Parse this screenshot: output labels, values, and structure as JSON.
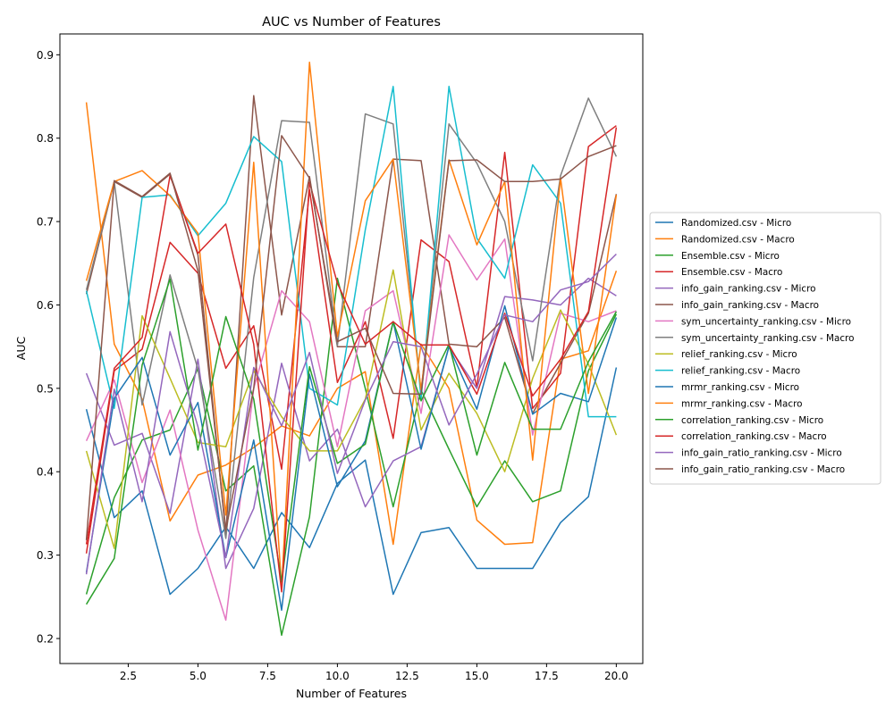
{
  "chart_data": {
    "type": "line",
    "title": "AUC vs Number of Features",
    "xlabel": "Number of Features",
    "ylabel": "AUC",
    "xlim": [
      0.05,
      20.95
    ],
    "ylim": [
      0.17,
      0.925
    ],
    "xticks": [
      2.5,
      5.0,
      7.5,
      10.0,
      12.5,
      15.0,
      17.5,
      20.0
    ],
    "xtick_labels": [
      "2.5",
      "5.0",
      "7.5",
      "10.0",
      "12.5",
      "15.0",
      "17.5",
      "20.0"
    ],
    "yticks": [
      0.2,
      0.3,
      0.4,
      0.5,
      0.6,
      0.7,
      0.8,
      0.9
    ],
    "ytick_labels": [
      "0.2",
      "0.3",
      "0.4",
      "0.5",
      "0.6",
      "0.7",
      "0.8",
      "0.9"
    ],
    "grid": false,
    "legend_position": "outside-right",
    "x": [
      1,
      2,
      3,
      4,
      5,
      6,
      7,
      8,
      9,
      10,
      11,
      12,
      13,
      14,
      15,
      16,
      17,
      18,
      19,
      20
    ],
    "series": [
      {
        "name": "Randomized.csv - Micro",
        "color": "#1f77b4",
        "values": [
          0.475,
          0.345,
          0.377,
          0.253,
          0.284,
          0.334,
          0.284,
          0.351,
          0.309,
          0.386,
          0.414,
          0.253,
          0.327,
          0.333,
          0.284,
          0.284,
          0.284,
          0.339,
          0.37,
          0.525
        ]
      },
      {
        "name": "Randomized.csv - Macro",
        "color": "#ff7f0e",
        "values": [
          0.843,
          0.553,
          0.487,
          0.341,
          0.396,
          0.408,
          0.429,
          0.455,
          0.443,
          0.5,
          0.52,
          0.313,
          0.553,
          0.5,
          0.342,
          0.313,
          0.315,
          0.535,
          0.545,
          0.641
        ]
      },
      {
        "name": "Ensemble.csv - Micro",
        "color": "#2ca02c",
        "values": [
          0.253,
          0.369,
          0.438,
          0.45,
          0.524,
          0.377,
          0.407,
          0.204,
          0.346,
          0.632,
          0.5,
          0.358,
          0.498,
          0.427,
          0.358,
          0.413,
          0.364,
          0.377,
          0.521,
          0.589
        ]
      },
      {
        "name": "Ensemble.csv - Macro",
        "color": "#d62728",
        "values": [
          0.302,
          0.521,
          0.547,
          0.675,
          0.638,
          0.524,
          0.575,
          0.403,
          0.738,
          0.507,
          0.58,
          0.44,
          0.678,
          0.652,
          0.501,
          0.783,
          0.476,
          0.518,
          0.79,
          0.815
        ]
      },
      {
        "name": "info_gain_ranking.csv - Micro",
        "color": "#9467bd",
        "values": [
          0.518,
          0.432,
          0.446,
          0.35,
          0.535,
          0.284,
          0.356,
          0.53,
          0.413,
          0.451,
          0.358,
          0.413,
          0.43,
          0.55,
          0.5,
          0.61,
          0.606,
          0.6,
          0.632,
          0.611
        ]
      },
      {
        "name": "info_gain_ranking.csv - Macro",
        "color": "#8c564b",
        "values": [
          0.613,
          0.748,
          0.729,
          0.757,
          0.66,
          0.325,
          0.851,
          0.588,
          0.754,
          0.55,
          0.55,
          0.775,
          0.773,
          0.553,
          0.55,
          0.585,
          0.47,
          0.53,
          0.59,
          0.733
        ]
      },
      {
        "name": "sym_uncertainty_ranking.csv - Micro",
        "color": "#e377c2",
        "values": [
          0.437,
          0.51,
          0.387,
          0.474,
          0.33,
          0.222,
          0.5,
          0.617,
          0.58,
          0.43,
          0.593,
          0.617,
          0.47,
          0.684,
          0.63,
          0.679,
          0.444,
          0.59,
          0.58,
          0.593
        ]
      },
      {
        "name": "sym_uncertainty_ranking.csv - Macro",
        "color": "#7f7f7f",
        "values": [
          0.618,
          0.748,
          0.48,
          0.636,
          0.523,
          0.32,
          0.633,
          0.821,
          0.819,
          0.551,
          0.829,
          0.817,
          0.495,
          0.817,
          0.77,
          0.7,
          0.533,
          0.755,
          0.848,
          0.778
        ]
      },
      {
        "name": "relief_ranking.csv - Micro",
        "color": "#bcbd22",
        "values": [
          0.425,
          0.308,
          0.587,
          0.512,
          0.435,
          0.43,
          0.521,
          0.466,
          0.425,
          0.425,
          0.487,
          0.642,
          0.45,
          0.518,
          0.47,
          0.4,
          0.512,
          0.594,
          0.529,
          0.444
        ]
      },
      {
        "name": "relief_ranking.csv - Macro",
        "color": "#17becf",
        "values": [
          0.617,
          0.476,
          0.729,
          0.732,
          0.683,
          0.722,
          0.802,
          0.772,
          0.5,
          0.48,
          0.69,
          0.862,
          0.487,
          0.862,
          0.68,
          0.632,
          0.768,
          0.722,
          0.466,
          0.466
        ]
      },
      {
        "name": "mrmr_ranking.csv - Micro",
        "color": "#1f77b4",
        "values": [
          0.279,
          0.488,
          0.537,
          0.42,
          0.483,
          0.297,
          0.438,
          0.234,
          0.517,
          0.382,
          0.437,
          0.58,
          0.427,
          0.55,
          0.475,
          0.599,
          0.469,
          0.494,
          0.484,
          0.585
        ]
      },
      {
        "name": "mrmr_ranking.csv - Macro",
        "color": "#ff7f0e",
        "values": [
          0.629,
          0.748,
          0.761,
          0.731,
          0.686,
          0.348,
          0.771,
          0.261,
          0.891,
          0.562,
          0.725,
          0.775,
          0.498,
          0.774,
          0.672,
          0.748,
          0.414,
          0.752,
          0.494,
          0.732
        ]
      },
      {
        "name": "correlation_ranking.csv - Micro",
        "color": "#2ca02c",
        "values": [
          0.241,
          0.296,
          0.528,
          0.631,
          0.426,
          0.586,
          0.487,
          0.268,
          0.526,
          0.41,
          0.433,
          0.58,
          0.485,
          0.553,
          0.42,
          0.531,
          0.451,
          0.451,
          0.532,
          0.592
        ]
      },
      {
        "name": "correlation_ranking.csv - Macro",
        "color": "#d62728",
        "values": [
          0.313,
          0.524,
          0.561,
          0.755,
          0.662,
          0.697,
          0.553,
          0.256,
          0.747,
          0.626,
          0.553,
          0.58,
          0.552,
          0.552,
          0.493,
          0.59,
          0.491,
          0.535,
          0.592,
          0.813
        ]
      },
      {
        "name": "info_gain_ratio_ranking.csv - Micro",
        "color": "#9467bd",
        "values": [
          0.277,
          0.499,
          0.364,
          0.568,
          0.454,
          0.297,
          0.525,
          0.455,
          0.543,
          0.398,
          0.486,
          0.556,
          0.55,
          0.456,
          0.517,
          0.588,
          0.58,
          0.618,
          0.628,
          0.661
        ]
      },
      {
        "name": "info_gain_ratio_ranking.csv - Macro",
        "color": "#8c564b",
        "values": [
          0.318,
          0.749,
          0.73,
          0.758,
          0.641,
          0.33,
          0.5,
          0.803,
          0.752,
          0.556,
          0.572,
          0.494,
          0.493,
          0.773,
          0.774,
          0.748,
          0.748,
          0.751,
          0.778,
          0.791
        ]
      }
    ]
  }
}
